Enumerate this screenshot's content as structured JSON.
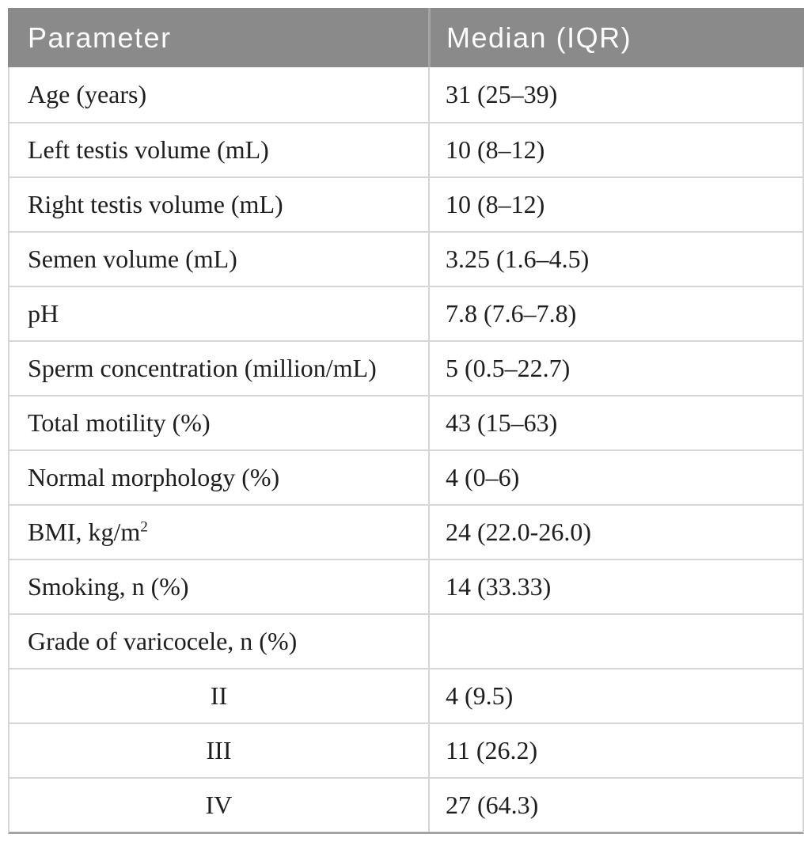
{
  "table": {
    "header": {
      "parameter": "Parameter",
      "median": "Median (IQR)"
    },
    "rows": [
      {
        "parameter": "Age (years)",
        "value": "31 (25–39)",
        "align": "left"
      },
      {
        "parameter": "Left testis volume (mL)",
        "value": "10 (8–12)",
        "align": "left"
      },
      {
        "parameter": "Right testis volume (mL)",
        "value": "10 (8–12)",
        "align": "left"
      },
      {
        "parameter": "Semen volume (mL)",
        "value": "3.25 (1.6–4.5)",
        "align": "left"
      },
      {
        "parameter": "pH",
        "value": "7.8 (7.6–7.8)",
        "align": "left"
      },
      {
        "parameter": "Sperm concentration (million/mL)",
        "value": "5 (0.5–22.7)",
        "align": "left"
      },
      {
        "parameter": "Total motility (%)",
        "value": "43 (15–63)",
        "align": "left"
      },
      {
        "parameter": "Normal morphology (%)",
        "value": "4 (0–6)",
        "align": "left"
      },
      {
        "parameter": "BMI, kg/m",
        "parameter_superscript": "2",
        "value": "24 (22.0-26.0)",
        "align": "left"
      },
      {
        "parameter": "Smoking, n (%)",
        "value": "14 (33.33)",
        "align": "left"
      },
      {
        "parameter": "Grade of varicocele, n (%)",
        "value": "",
        "align": "left"
      },
      {
        "parameter": "II",
        "value": "4 (9.5)",
        "align": "center"
      },
      {
        "parameter": "III",
        "value": "11 (26.2)",
        "align": "center"
      },
      {
        "parameter": "IV",
        "value": "27 (64.3)",
        "align": "center"
      }
    ]
  },
  "colors": {
    "page_bg": "#ffffff",
    "header_bg": "#8a8a8a",
    "header_text": "#fcfcfc",
    "header_divider": "#a5a5a5",
    "body_text": "#1e1e1e",
    "grid_line": "#d5d5d5",
    "bottom_border": "#a3a3a3"
  }
}
